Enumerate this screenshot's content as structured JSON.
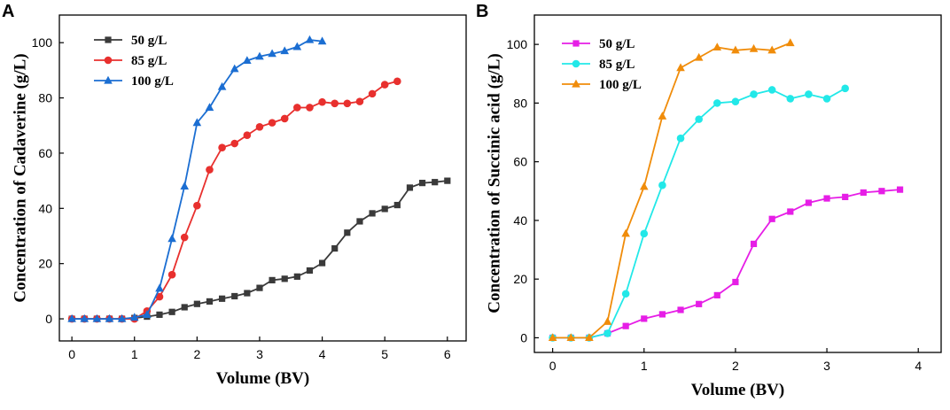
{
  "chart_data": [
    {
      "panel": "A",
      "type": "line",
      "xlabel": "Volume (BV)",
      "ylabel": "Concentration of Cadaverine (g/L)",
      "xlim": [
        -0.2,
        6.3
      ],
      "ylim": [
        -8,
        110
      ],
      "xticks": [
        0,
        1,
        2,
        3,
        4,
        5,
        6
      ],
      "yticks": [
        0,
        20,
        40,
        60,
        80,
        100
      ],
      "legend_position": "top-left",
      "series": [
        {
          "name": "50 g/L",
          "color": "#3a3a3a",
          "marker": "square",
          "x": [
            0,
            0.2,
            0.4,
            0.6,
            0.8,
            1.0,
            1.2,
            1.4,
            1.6,
            1.8,
            2.0,
            2.2,
            2.4,
            2.6,
            2.8,
            3.0,
            3.2,
            3.4,
            3.6,
            3.8,
            4.0,
            4.2,
            4.4,
            4.6,
            4.8,
            5.0,
            5.2,
            5.4,
            5.6,
            5.8,
            6.0
          ],
          "y": [
            0,
            0,
            0,
            0,
            0,
            0.3,
            0.8,
            1.5,
            2.5,
            4.2,
            5.4,
            6.3,
            7.3,
            8.2,
            9.3,
            11.2,
            14,
            14.5,
            15.3,
            17.5,
            20.2,
            25.5,
            31.2,
            35.3,
            38.2,
            39.8,
            41.2,
            47.5,
            49.2,
            49.5,
            50
          ]
        },
        {
          "name": "85 g/L",
          "color": "#e8302e",
          "marker": "circle",
          "x": [
            0,
            0.2,
            0.4,
            0.6,
            0.8,
            1.0,
            1.2,
            1.4,
            1.6,
            1.8,
            2.0,
            2.2,
            2.4,
            2.6,
            2.8,
            3.0,
            3.2,
            3.4,
            3.6,
            3.8,
            4.0,
            4.2,
            4.4,
            4.6,
            4.8,
            5.0,
            5.2
          ],
          "y": [
            0,
            0,
            0,
            0,
            0,
            0,
            2.8,
            8,
            16,
            29.5,
            41,
            54,
            62,
            63.5,
            66.5,
            69.5,
            71,
            72.5,
            76.5,
            76.5,
            78.5,
            78,
            78,
            78.7,
            81.5,
            84.8,
            86
          ]
        },
        {
          "name": "100 g/L",
          "color": "#1b6ed2",
          "marker": "triangle",
          "x": [
            0,
            0.2,
            0.4,
            0.6,
            0.8,
            1.0,
            1.2,
            1.4,
            1.6,
            1.8,
            2.0,
            2.2,
            2.4,
            2.6,
            2.8,
            3.0,
            3.2,
            3.4,
            3.6,
            3.8,
            4.0
          ],
          "y": [
            0,
            0,
            0,
            0,
            0,
            0.5,
            1.5,
            11,
            29,
            48,
            71,
            76.5,
            84,
            90.5,
            93.5,
            95,
            96,
            97,
            98.5,
            101,
            100.5
          ]
        }
      ]
    },
    {
      "panel": "B",
      "type": "line",
      "xlabel": "Volume (BV)",
      "ylabel": "Concentration of Succinic acid (g/L)",
      "xlim": [
        -0.2,
        4.25
      ],
      "ylim": [
        -5,
        110
      ],
      "xticks": [
        0,
        1,
        2,
        3,
        4
      ],
      "yticks": [
        0,
        20,
        40,
        60,
        80,
        100
      ],
      "legend_position": "top-left",
      "series": [
        {
          "name": "50 g/L",
          "color": "#e61ee6",
          "marker": "square",
          "x": [
            0,
            0.2,
            0.4,
            0.6,
            0.8,
            1.0,
            1.2,
            1.4,
            1.6,
            1.8,
            2.0,
            2.2,
            2.4,
            2.6,
            2.8,
            3.0,
            3.2,
            3.4,
            3.6,
            3.8
          ],
          "y": [
            0,
            0,
            0,
            1.5,
            4,
            6.5,
            8,
            9.5,
            11.5,
            14.5,
            19,
            32,
            40.5,
            43,
            46,
            47.5,
            48,
            49.5,
            50,
            50.5
          ]
        },
        {
          "name": "85 g/L",
          "color": "#22e8e8",
          "marker": "circle",
          "x": [
            0,
            0.2,
            0.4,
            0.6,
            0.8,
            1.0,
            1.2,
            1.4,
            1.6,
            1.8,
            2.0,
            2.2,
            2.4,
            2.6,
            2.8,
            3.0,
            3.2
          ],
          "y": [
            0,
            0,
            0,
            1.5,
            15,
            35.5,
            52,
            68,
            74.5,
            80,
            80.5,
            83,
            84.5,
            81.5,
            83,
            81.5,
            85
          ]
        },
        {
          "name": "100 g/L",
          "color": "#f08c0a",
          "marker": "triangle",
          "x": [
            0,
            0.2,
            0.4,
            0.6,
            0.8,
            1.0,
            1.2,
            1.4,
            1.6,
            1.8,
            2.0,
            2.2,
            2.4,
            2.6
          ],
          "y": [
            0,
            0,
            0,
            5.5,
            35.5,
            51.5,
            75.5,
            92,
            95.5,
            99,
            98,
            98.5,
            98,
            100.5
          ]
        }
      ]
    }
  ]
}
